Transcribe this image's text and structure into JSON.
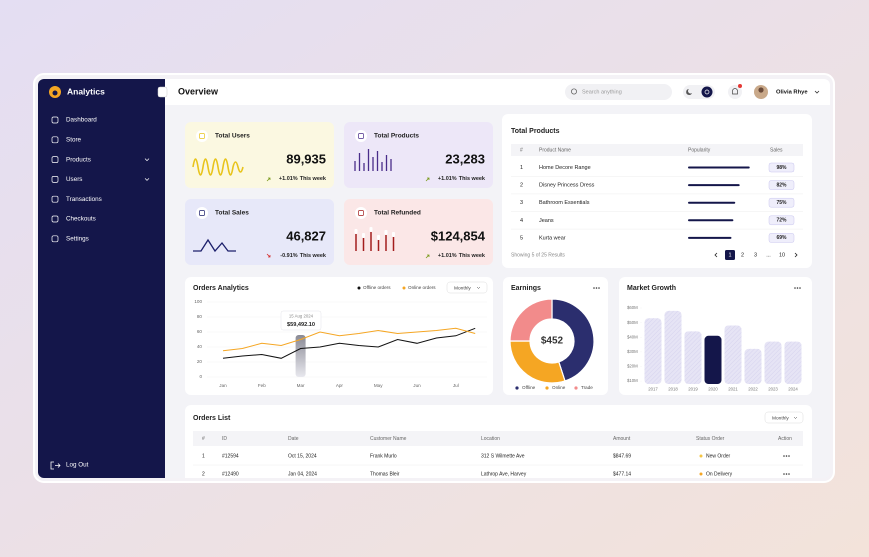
{
  "sidebar": {
    "brand": "Analytics",
    "nav": [
      "Dashboard",
      "Store",
      "Products",
      "Users",
      "Transactions",
      "Checkouts",
      "Settings"
    ],
    "logout": "Log Out"
  },
  "header": {
    "title": "Overview",
    "search": "Search anything",
    "user": "Olivia Rhye"
  },
  "stats": [
    {
      "title": "Total Users",
      "value": "89,935",
      "change": "+1.01%",
      "period": "This week"
    },
    {
      "title": "Total Products",
      "value": "23,283",
      "change": "+1.01%",
      "period": "This week"
    },
    {
      "title": "Total Sales",
      "value": "46,827",
      "change": "-0.91%",
      "period": "This week"
    },
    {
      "title": "Total Refunded",
      "value": "$124,854",
      "change": "+1.01%",
      "period": "This week"
    }
  ],
  "products": {
    "title": "Total Products",
    "columns": [
      "#",
      "Product Name",
      "Popularity",
      "Sales"
    ],
    "rows": [
      {
        "rank": 1,
        "name": "Home Decore Range",
        "sales": 98,
        "sales_label": "98%"
      },
      {
        "rank": 2,
        "name": "Disney Princess Dress",
        "sales": 82,
        "sales_label": "82%"
      },
      {
        "rank": 3,
        "name": "Bathroom Essentials",
        "sales": 75,
        "sales_label": "75%"
      },
      {
        "rank": 4,
        "name": "Jeans",
        "sales": 72,
        "sales_label": "72%"
      },
      {
        "rank": 5,
        "name": "Kurta wear",
        "sales": 69,
        "sales_label": "69%"
      }
    ],
    "summary": "Showing 5 of 25 Results",
    "pages": [
      "1",
      "2",
      "3",
      "...",
      "10"
    ]
  },
  "chart_data": [
    {
      "type": "line",
      "title": "Orders Analytics",
      "filter": "Monthly",
      "categories": [
        "Jan",
        null,
        "Feb",
        null,
        "Mar",
        null,
        "Apr",
        null,
        "May",
        null,
        "Jun",
        null,
        "Jul",
        null
      ],
      "series": [
        {
          "name": "Offline orders",
          "color": "#111111",
          "values": [
            25,
            28,
            30,
            25,
            38,
            40,
            45,
            42,
            40,
            50,
            45,
            52,
            55,
            65
          ]
        },
        {
          "name": "Online orders",
          "color": "#f5a623",
          "values": [
            35,
            38,
            45,
            42,
            50,
            60,
            55,
            58,
            62,
            58,
            60,
            62,
            65,
            58
          ]
        }
      ],
      "ylim": [
        0,
        100
      ],
      "yticks": [
        0,
        20,
        40,
        60,
        80,
        100
      ],
      "tooltip": {
        "label": "15 Aug 2024",
        "value": "$59,492.10"
      }
    },
    {
      "type": "pie",
      "title": "Earnings",
      "center_label": "$452",
      "categories": [
        "Offline",
        "Online",
        "Trade"
      ],
      "values": [
        45,
        30,
        25
      ],
      "colors": [
        "#2b2e6e",
        "#f5a623",
        "#f28b8b"
      ]
    },
    {
      "type": "bar",
      "title": "Market Growth",
      "categories": [
        "2017",
        "2018",
        "2019",
        "2020",
        "2021",
        "2022",
        "2023",
        "2024"
      ],
      "values": [
        53,
        58,
        44,
        41,
        48,
        32,
        37,
        37
      ],
      "colors": [
        "#e6e4f5",
        "#e6e4f5",
        "#e6e4f5",
        "#14164a",
        "#e6e4f5",
        "#e6e4f5",
        "#e6e4f5",
        "#e6e4f5"
      ],
      "ylim": [
        8,
        65
      ],
      "yticks": [
        {
          "value": 10,
          "label": "$10M"
        },
        {
          "value": 20,
          "label": "$20M"
        },
        {
          "value": 30,
          "label": "$30M"
        },
        {
          "value": 40,
          "label": "$40M"
        },
        {
          "value": 50,
          "label": "$50M"
        },
        {
          "value": 60,
          "label": "$60M"
        }
      ]
    }
  ],
  "orders": {
    "title": "Orders List",
    "filter": "Monthly",
    "columns": [
      "#",
      "ID",
      "Date",
      "Customer Name",
      "Location",
      "Amount",
      "Status Order",
      "Action"
    ],
    "rows": [
      [
        "1",
        "#12594",
        "Oct 15, 2024",
        "Frank Murlo",
        "312 S Wilmette Ave",
        "$847.69",
        "New Order"
      ],
      [
        "2",
        "#12490",
        "Jan 04, 2024",
        "Thomas Bleir",
        "Lathrop Ave, Harvey",
        "$477.14",
        "On Delivery"
      ]
    ]
  }
}
